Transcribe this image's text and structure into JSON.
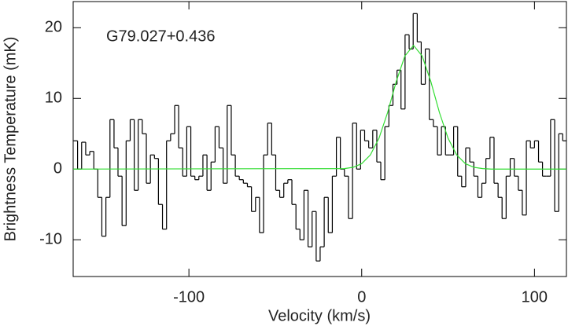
{
  "chart_data": {
    "type": "step",
    "annotation": "G79.027+0.436",
    "xlabel": "Velocity (km/s)",
    "ylabel": "Brightness Temperature (mK)",
    "xlim": [
      -167,
      118.5
    ],
    "ylim": [
      -15.2,
      23.7
    ],
    "xticks": [
      -100,
      0,
      100
    ],
    "yticks": [
      -10,
      0,
      10,
      20
    ],
    "series": [
      {
        "color": "#000000",
        "x": [
          -165.6,
          -163.3,
          -160.9,
          -158.6,
          -156.2,
          -153.9,
          -151.6,
          -149.2,
          -146.9,
          -144.5,
          -142.2,
          -139.9,
          -137.5,
          -135.2,
          -132.8,
          -130.5,
          -128.2,
          -125.8,
          -123.5,
          -121.1,
          -118.8,
          -116.5,
          -114.1,
          -111.8,
          -109.4,
          -107.1,
          -104.8,
          -102.4,
          -100.1,
          -97.7,
          -95.4,
          -93.1,
          -90.7,
          -88.4,
          -86.0,
          -83.7,
          -81.4,
          -79.0,
          -76.7,
          -74.3,
          -72.0,
          -69.7,
          -67.3,
          -65.0,
          -62.6,
          -60.3,
          -58.0,
          -55.6,
          -53.3,
          -50.9,
          -48.6,
          -46.3,
          -43.9,
          -41.6,
          -39.2,
          -36.9,
          -34.6,
          -32.2,
          -29.9,
          -27.5,
          -25.2,
          -22.9,
          -20.5,
          -18.2,
          -15.8,
          -13.5,
          -11.2,
          -8.8,
          -6.5,
          -4.1,
          -1.8,
          0.5,
          2.9,
          5.2,
          7.6,
          9.9,
          12.2,
          14.6,
          16.9,
          19.3,
          21.6,
          23.9,
          26.3,
          28.6,
          31.0,
          33.3,
          35.6,
          38.0,
          40.3,
          42.7,
          45.0,
          47.3,
          49.7,
          52.0,
          54.4,
          56.7,
          59.0,
          61.4,
          63.7,
          66.1,
          68.4,
          70.7,
          73.1,
          75.4,
          77.8,
          80.1,
          82.4,
          84.8,
          87.1,
          89.5,
          91.8,
          94.1,
          96.5,
          98.8,
          101.2,
          103.5,
          105.8,
          108.2,
          110.5,
          112.9,
          115.2,
          117.5
        ],
        "values": [
          4,
          0,
          3.8,
          2,
          2.5,
          0,
          -4,
          -9.5,
          -4,
          7,
          3,
          -1,
          -8,
          4,
          7,
          -3,
          7,
          5,
          -2,
          2,
          1.5,
          -5,
          -8.5,
          4,
          5,
          9,
          3,
          -1,
          6,
          -1,
          -1.5,
          -1,
          2,
          -3,
          1,
          6,
          3,
          -2,
          9,
          2,
          -1,
          -1.5,
          -2,
          -2.5,
          -6,
          -4,
          -9,
          2,
          6.5,
          2,
          -3,
          -4,
          -2,
          -1.5,
          -5,
          -8.5,
          -10,
          -3,
          -11,
          -6,
          -13,
          -11,
          -4,
          -9,
          -1,
          4.5,
          0,
          -1,
          -7,
          6.5,
          0,
          5.5,
          4,
          3,
          5.5,
          1,
          -1.5,
          6,
          9,
          12,
          14,
          8.5,
          19,
          17,
          22,
          18,
          12,
          17,
          7,
          6,
          2,
          6,
          2,
          2,
          6,
          -1,
          -2.5,
          3,
          1,
          -1,
          -4,
          -2,
          1.5,
          4.5,
          -2,
          -4,
          -7,
          -1,
          1.5,
          -1,
          -3,
          -6.5,
          4,
          3,
          4,
          1,
          -1,
          -1,
          7,
          -6,
          5,
          4
        ]
      },
      {
        "color": "#33dd33",
        "x": [
          -167,
          -10,
          -5,
          0,
          5,
          10,
          15,
          20,
          25,
          30,
          35,
          40,
          45,
          50,
          55,
          60,
          65,
          70,
          75,
          118.5
        ],
        "values": [
          0,
          0.07,
          0.25,
          0.77,
          2.0,
          4.36,
          8.0,
          12.4,
          16.0,
          17.5,
          16.0,
          12.4,
          8.0,
          4.36,
          2.0,
          0.77,
          0.25,
          0.07,
          0,
          0
        ]
      }
    ]
  }
}
